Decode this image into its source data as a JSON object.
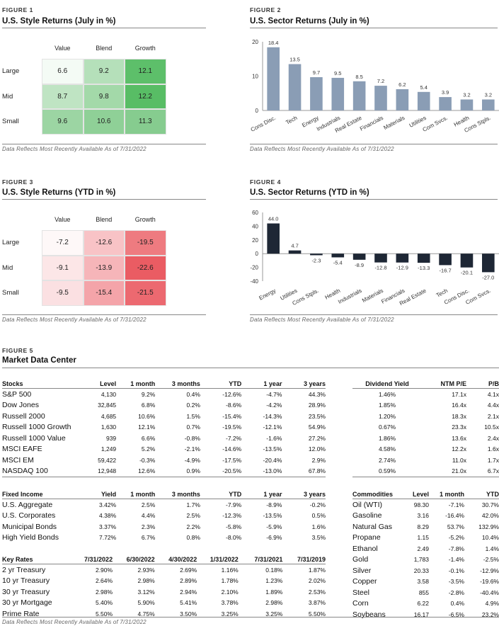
{
  "fig1": {
    "label": "FIGURE 1",
    "title": "U.S. Style Returns (July in %)",
    "cols": [
      "Value",
      "Blend",
      "Growth"
    ],
    "rows": [
      "Large",
      "Mid",
      "Small"
    ],
    "values": [
      [
        "6.6",
        "9.2",
        "12.1"
      ],
      [
        "8.7",
        "9.8",
        "12.2"
      ],
      [
        "9.6",
        "10.6",
        "11.3"
      ]
    ],
    "colors": [
      [
        "#f4fbf5",
        "#b5e0ba",
        "#5dbf6a"
      ],
      [
        "#bfe4c3",
        "#a3d9a9",
        "#58bd65"
      ],
      [
        "#9cd5a3",
        "#8fd097",
        "#86cc8f"
      ]
    ],
    "note": "Data Reflects Most Recently Available As of 7/31/2022"
  },
  "fig2": {
    "label": "FIGURE 2",
    "title": "U.S. Sector Returns (July in %)",
    "note": "Data Reflects Most Recently Available As of 7/31/2022"
  },
  "fig3": {
    "label": "FIGURE 3",
    "title": "U.S. Style Returns (YTD in %)",
    "cols": [
      "Value",
      "Blend",
      "Growth"
    ],
    "rows": [
      "Large",
      "Mid",
      "Small"
    ],
    "values": [
      [
        "-7.2",
        "-12.6",
        "-19.5"
      ],
      [
        "-9.1",
        "-13.9",
        "-22.6"
      ],
      [
        "-9.5",
        "-15.4",
        "-21.5"
      ]
    ],
    "colors": [
      [
        "#fef8f8",
        "#f8c3c6",
        "#ee7b80"
      ],
      [
        "#fce6e7",
        "#f6b5b9",
        "#ea5c63"
      ],
      [
        "#fbe0e2",
        "#f4a4a9",
        "#ec6970"
      ]
    ],
    "note": "Data Reflects Most Recently Available As of 7/31/2022"
  },
  "fig4": {
    "label": "FIGURE 4",
    "title": "U.S. Sector Returns (YTD in %)",
    "note": "Data Reflects Most Recently Available As of 7/31/2022"
  },
  "fig5": {
    "label": "FIGURE 5",
    "title": "Market Data Center",
    "note": "Data Reflects Most Recently Available As of 7/31/2022"
  },
  "chart_data": [
    {
      "type": "bar",
      "title": "U.S. Sector Returns (July in %)",
      "categories": [
        "Cons Disc.",
        "Tech",
        "Energy",
        "Industrials",
        "Real Estate",
        "Financials",
        "Materials",
        "Utilities",
        "Com Svcs.",
        "Health",
        "Cons Stpls."
      ],
      "values": [
        18.4,
        13.5,
        9.7,
        9.5,
        8.5,
        7.2,
        6.2,
        5.4,
        3.9,
        3.2,
        3.2
      ],
      "labels": [
        "18.4",
        "13.5",
        "9.7",
        "9.5",
        "8.5",
        "7.2",
        "6.2",
        "5.4",
        "3.9",
        "3.2",
        "3.2"
      ],
      "yticks": [
        "0",
        "10",
        "20"
      ],
      "ylim": [
        0,
        20
      ],
      "color": "#8a9db5"
    },
    {
      "type": "bar",
      "title": "U.S. Sector Returns (YTD in %)",
      "categories": [
        "Energy",
        "Utilities",
        "Cons Stpls.",
        "Health",
        "Industrials",
        "Materials",
        "Financials",
        "Real Estate",
        "Tech",
        "Cons Disc.",
        "Com Svcs."
      ],
      "values": [
        44.0,
        4.7,
        -2.3,
        -5.4,
        -8.9,
        -12.8,
        -12.9,
        -13.3,
        -16.7,
        -20.1,
        -27.0
      ],
      "labels": [
        "44.0",
        "4.7",
        "-2.3",
        "-5.4",
        "-8.9",
        "-12.8",
        "-12.9",
        "-13.3",
        "-16.7",
        "-20.1",
        "-27.0"
      ],
      "yticks": [
        "-40",
        "-20",
        "0",
        "20",
        "40",
        "60"
      ],
      "ylim": [
        -40,
        60
      ],
      "color": "#1e2735"
    }
  ],
  "stocks": {
    "headers": [
      "Stocks",
      "Level",
      "1 month",
      "3 months",
      "YTD",
      "1 year",
      "3 years"
    ],
    "rows": [
      [
        "S&P 500",
        "4,130",
        "9.2%",
        "0.4%",
        "-12.6%",
        "-4.7%",
        "44.3%"
      ],
      [
        "Dow Jones",
        "32,845",
        "6.8%",
        "0.2%",
        "-8.6%",
        "-4.2%",
        "28.9%"
      ],
      [
        "Russell 2000",
        "4,685",
        "10.6%",
        "1.5%",
        "-15.4%",
        "-14.3%",
        "23.5%"
      ],
      [
        "Russell 1000 Growth",
        "1,630",
        "12.1%",
        "0.7%",
        "-19.5%",
        "-12.1%",
        "54.9%"
      ],
      [
        "Russell 1000 Value",
        "939",
        "6.6%",
        "-0.8%",
        "-7.2%",
        "-1.6%",
        "27.2%"
      ],
      [
        "MSCI EAFE",
        "1,249",
        "5.2%",
        "-2.1%",
        "-14.6%",
        "-13.5%",
        "12.0%"
      ],
      [
        "MSCI EM",
        "59,422",
        "-0.3%",
        "-4.9%",
        "-17.5%",
        "-20.4%",
        "2.9%"
      ],
      [
        "NASDAQ 100",
        "12,948",
        "12.6%",
        "0.9%",
        "-20.5%",
        "-13.0%",
        "67.8%"
      ]
    ]
  },
  "dividend": {
    "headers": [
      "Dividend Yield",
      "NTM P/E",
      "P/B"
    ],
    "rows": [
      [
        "1.46%",
        "17.1x",
        "4.1x"
      ],
      [
        "1.85%",
        "16.4x",
        "4.4x"
      ],
      [
        "1.20%",
        "18.3x",
        "2.1x"
      ],
      [
        "0.67%",
        "23.3x",
        "10.5x"
      ],
      [
        "1.86%",
        "13.6x",
        "2.4x"
      ],
      [
        "4.58%",
        "12.2x",
        "1.6x"
      ],
      [
        "2.74%",
        "11.0x",
        "1.7x"
      ],
      [
        "0.59%",
        "21.0x",
        "6.7x"
      ]
    ]
  },
  "fixed_income": {
    "headers": [
      "Fixed Income",
      "Yield",
      "1 month",
      "3 months",
      "YTD",
      "1 year",
      "3 years"
    ],
    "rows": [
      [
        "U.S. Aggregate",
        "3.42%",
        "2.5%",
        "1.7%",
        "-7.9%",
        "-8.9%",
        "-0.2%"
      ],
      [
        "U.S. Corporates",
        "4.38%",
        "4.4%",
        "2.5%",
        "-12.3%",
        "-13.5%",
        "0.5%"
      ],
      [
        "Municipal Bonds",
        "3.37%",
        "2.3%",
        "2.2%",
        "-5.8%",
        "-5.9%",
        "1.6%"
      ],
      [
        "High Yield Bonds",
        "7.72%",
        "6.7%",
        "0.8%",
        "-8.0%",
        "-6.9%",
        "3.5%"
      ]
    ]
  },
  "key_rates": {
    "headers": [
      "Key Rates",
      "7/31/2022",
      "6/30/2022",
      "4/30/2022",
      "1/31/2022",
      "7/31/2021",
      "7/31/2019"
    ],
    "rows": [
      [
        "2 yr Treasury",
        "2.90%",
        "2.93%",
        "2.69%",
        "1.16%",
        "0.18%",
        "1.87%"
      ],
      [
        "10 yr Treasury",
        "2.64%",
        "2.98%",
        "2.89%",
        "1.78%",
        "1.23%",
        "2.02%"
      ],
      [
        "30 yr Treasury",
        "2.98%",
        "3.12%",
        "2.94%",
        "2.10%",
        "1.89%",
        "2.53%"
      ],
      [
        "30 yr Mortgage",
        "5.40%",
        "5.90%",
        "5.41%",
        "3.78%",
        "2.98%",
        "3.87%"
      ],
      [
        "Prime Rate",
        "5.50%",
        "4.75%",
        "3.50%",
        "3.25%",
        "3.25%",
        "5.50%"
      ]
    ]
  },
  "commodities": {
    "headers": [
      "Commodities",
      "Level",
      "1 month",
      "YTD"
    ],
    "rows": [
      [
        "Oil (WTI)",
        "98.30",
        "-7.1%",
        "30.7%"
      ],
      [
        "Gasoline",
        "3.16",
        "-16.4%",
        "42.0%"
      ],
      [
        "Natural Gas",
        "8.29",
        "53.7%",
        "132.9%"
      ],
      [
        "Propane",
        "1.15",
        "-5.2%",
        "10.4%"
      ],
      [
        "Ethanol",
        "2.49",
        "-7.8%",
        "1.4%"
      ],
      [
        "Gold",
        "1,783",
        "-1.4%",
        "-2.5%"
      ],
      [
        "Silver",
        "20.33",
        "-0.1%",
        "-12.9%"
      ],
      [
        "Copper",
        "3.58",
        "-3.5%",
        "-19.6%"
      ],
      [
        "Steel",
        "855",
        "-2.8%",
        "-40.4%"
      ],
      [
        "Corn",
        "6.22",
        "0.4%",
        "4.9%"
      ],
      [
        "Soybeans",
        "16.17",
        "-6.5%",
        "23.2%"
      ]
    ]
  }
}
